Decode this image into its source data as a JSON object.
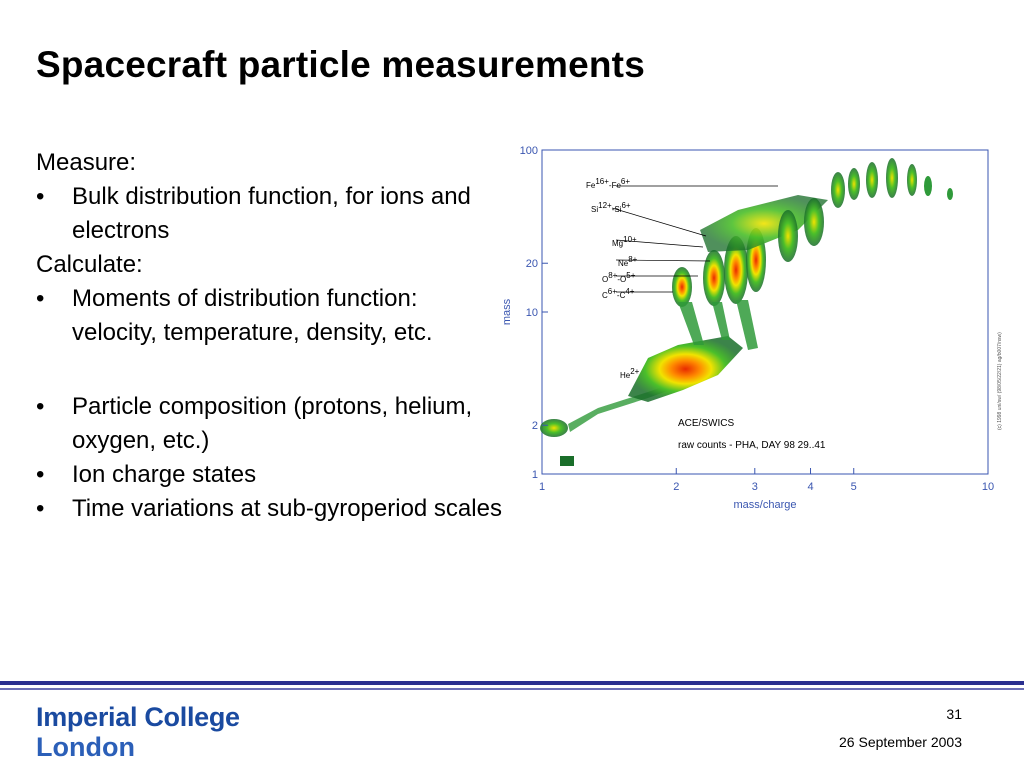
{
  "slide": {
    "title": "Spacecraft particle measurements",
    "body": [
      {
        "type": "text",
        "text": "Measure:"
      },
      {
        "type": "bullet",
        "text": "Bulk distribution function, for ions and electrons"
      },
      {
        "type": "text",
        "text": "Calculate:"
      },
      {
        "type": "bullet",
        "text": "Moments of distribution function: velocity, temperature, density, etc."
      },
      {
        "type": "bullet",
        "text": "Particle composition (protons, helium, oxygen, etc.)"
      },
      {
        "type": "bullet",
        "text": "Ion charge states"
      },
      {
        "type": "bullet",
        "text": "Time variations at sub-gyroperiod scales"
      }
    ]
  },
  "chart_data": {
    "type": "scatter",
    "xlabel": "mass/charge",
    "ylabel": "mass",
    "xscale": "log",
    "yscale": "log",
    "xlim": [
      1,
      10
    ],
    "ylim": [
      1,
      100
    ],
    "xticks": [
      "1",
      "2",
      "3",
      "4",
      "5",
      "10"
    ],
    "yticks": [
      "1",
      "2",
      "10",
      "20",
      "100"
    ],
    "annotation_lines": [
      "ACE/SWICS",
      "raw counts - PHA, DAY 98 29..41"
    ],
    "ion_labels": [
      {
        "base": "Fe",
        "sup1": "16+",
        "mid": "-Fe",
        "sup2": "6+"
      },
      {
        "base": "Si",
        "sup1": "12+",
        "mid": "-Si",
        "sup2": "6+"
      },
      {
        "base": "Mg",
        "sup1": "10+",
        "mid": "",
        "sup2": ""
      },
      {
        "base": "Ne",
        "sup1": "8+",
        "mid": "",
        "sup2": ""
      },
      {
        "base": "O",
        "sup1": "8+",
        "mid": "-O",
        "sup2": "5+"
      },
      {
        "base": "C",
        "sup1": "6+",
        "mid": "-C",
        "sup2": "4+"
      },
      {
        "base": "He",
        "sup1": "2+",
        "mid": "",
        "sup2": ""
      }
    ],
    "side_text": "(c) 1998 uni/sw/ (98/05/22/21) ag/b007/nsw)",
    "clusters": [
      {
        "name": "H+",
        "x": 1.0,
        "y": 1.0
      },
      {
        "name": "He2+",
        "x": 2.0,
        "y": 4.0
      },
      {
        "name": "C6+-C4+",
        "x": 2.2,
        "y": 12.5
      },
      {
        "name": "O8+-O5+",
        "x": 2.6,
        "y": 16.0
      },
      {
        "name": "Ne8+",
        "x": 2.6,
        "y": 20.5
      },
      {
        "name": "Mg10+",
        "x": 2.5,
        "y": 24.5
      },
      {
        "name": "Si12+-Si6+",
        "x": 3.5,
        "y": 28.0
      },
      {
        "name": "Fe16+-Fe6+",
        "x": 6.5,
        "y": 56.0
      }
    ],
    "colors": {
      "frame": "#3a56b0",
      "low": "#1a6e2a",
      "mid": "#f1e300",
      "high": "#e82a00"
    }
  },
  "footer": {
    "logo_line1": "Imperial College",
    "logo_line2": "London",
    "page_number": "31",
    "date": "26 September 2003"
  }
}
